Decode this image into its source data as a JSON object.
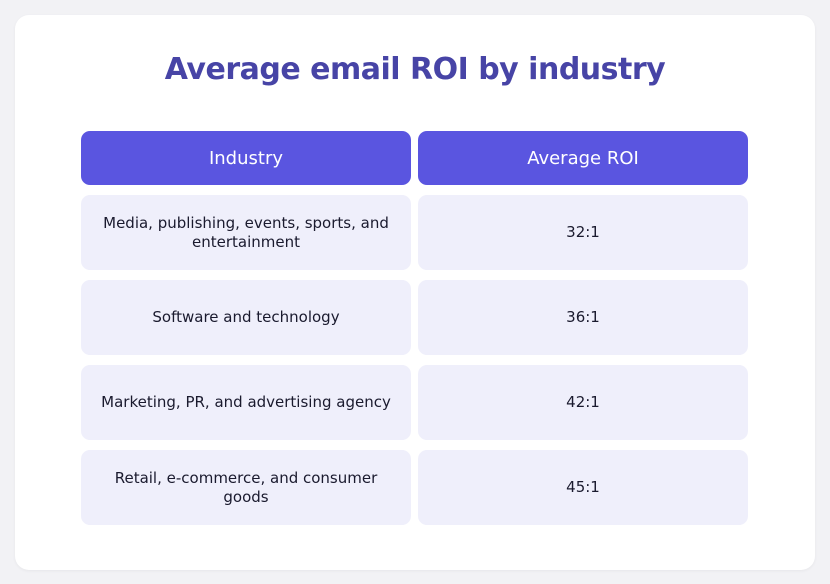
{
  "title": "Average email ROI by industry",
  "table": {
    "headers": [
      "Industry",
      "Average ROI"
    ],
    "rows": [
      [
        "Media, publishing, events, sports, and entertainment",
        "32:1"
      ],
      [
        "Software and technology",
        "36:1"
      ],
      [
        "Marketing, PR, and advertising agency",
        "42:1"
      ],
      [
        "Retail, e-commerce, and consumer goods",
        "45:1"
      ]
    ]
  }
}
